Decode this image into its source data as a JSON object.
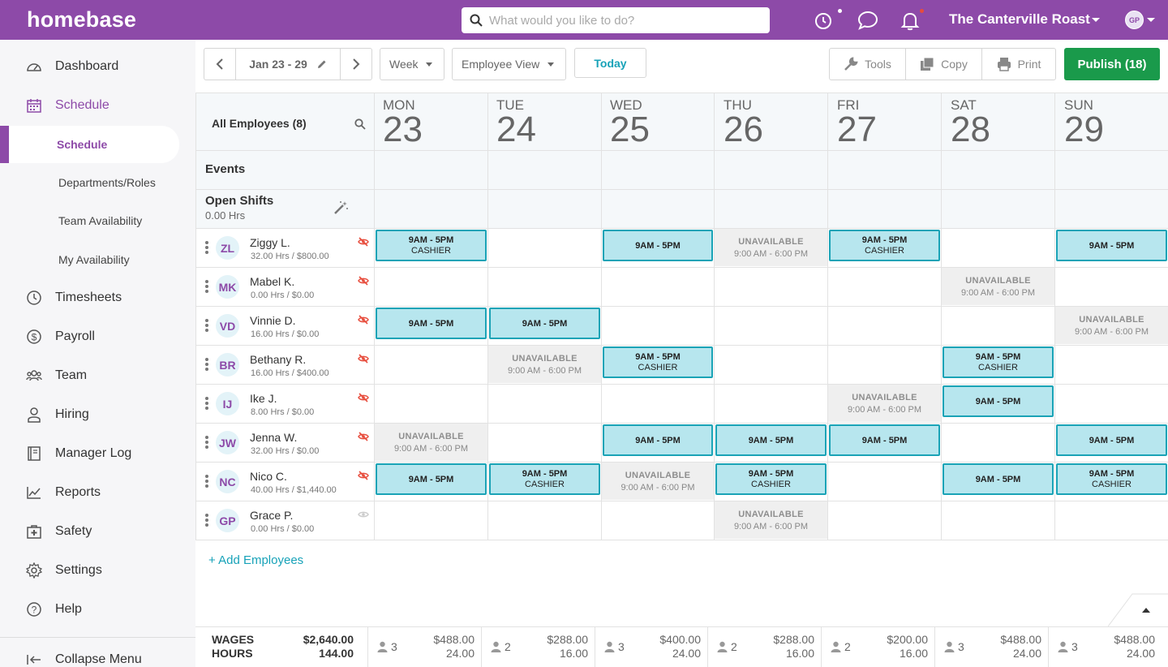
{
  "app": {
    "logo": "homebase",
    "search_placeholder": "What would you like to do?",
    "company": "The Canterville Roast",
    "user_initials": "GP"
  },
  "sidebar": {
    "items": [
      {
        "label": "Dashboard",
        "icon": "dashboard-icon"
      },
      {
        "label": "Schedule",
        "icon": "calendar-icon"
      },
      {
        "label": "Timesheets",
        "icon": "clock-icon"
      },
      {
        "label": "Payroll",
        "icon": "dollar-icon"
      },
      {
        "label": "Team",
        "icon": "team-icon"
      },
      {
        "label": "Hiring",
        "icon": "person-icon"
      },
      {
        "label": "Manager Log",
        "icon": "logbook-icon"
      },
      {
        "label": "Reports",
        "icon": "chart-icon"
      },
      {
        "label": "Safety",
        "icon": "first-aid-icon"
      },
      {
        "label": "Settings",
        "icon": "gear-icon"
      },
      {
        "label": "Help",
        "icon": "help-icon"
      }
    ],
    "sub_items": [
      "Schedule",
      "Departments/Roles",
      "Team Availability",
      "My Availability"
    ],
    "collapse": "Collapse Menu"
  },
  "toolbar": {
    "date_range": "Jan 23 - 29",
    "period": "Week",
    "view": "Employee View",
    "today": "Today",
    "tools": "Tools",
    "copy": "Copy",
    "print": "Print",
    "publish": "Publish (18)"
  },
  "grid": {
    "all_employees": "All Employees (8)",
    "events": "Events",
    "open_shifts": "Open Shifts",
    "open_hours": "0.00 Hrs",
    "add_employees": "+ Add Employees",
    "days": [
      {
        "name": "MON",
        "num": "23"
      },
      {
        "name": "TUE",
        "num": "24"
      },
      {
        "name": "WED",
        "num": "25"
      },
      {
        "name": "THU",
        "num": "26"
      },
      {
        "name": "FRI",
        "num": "27"
      },
      {
        "name": "SAT",
        "num": "28"
      },
      {
        "name": "SUN",
        "num": "29"
      }
    ],
    "shift_label": "9AM - 5PM",
    "role_label": "CASHIER",
    "unavailable_label": "UNAVAILABLE",
    "unavailable_hours": "9:00 AM - 6:00 PM",
    "employees": [
      {
        "initials": "ZL",
        "name": "Ziggy L.",
        "stats": "32.00 Hrs / $800.00",
        "cells": [
          "shift-role",
          "",
          "shift",
          "unavail",
          "shift-role",
          "",
          "shift"
        ]
      },
      {
        "initials": "MK",
        "name": "Mabel K.",
        "stats": "0.00 Hrs / $0.00",
        "cells": [
          "",
          "",
          "",
          "",
          "",
          "unavail",
          ""
        ]
      },
      {
        "initials": "VD",
        "name": "Vinnie D.",
        "stats": "16.00 Hrs / $0.00",
        "cells": [
          "shift",
          "shift",
          "",
          "",
          "",
          "",
          "unavail"
        ]
      },
      {
        "initials": "BR",
        "name": "Bethany R.",
        "stats": "16.00 Hrs / $400.00",
        "cells": [
          "",
          "unavail",
          "shift-role",
          "",
          "",
          "shift-role",
          ""
        ]
      },
      {
        "initials": "IJ",
        "name": "Ike J.",
        "stats": "8.00 Hrs / $0.00",
        "cells": [
          "",
          "",
          "",
          "",
          "unavail",
          "shift",
          ""
        ]
      },
      {
        "initials": "JW",
        "name": "Jenna W.",
        "stats": "32.00 Hrs / $0.00",
        "cells": [
          "unavail",
          "",
          "shift",
          "shift",
          "shift",
          "",
          "shift"
        ]
      },
      {
        "initials": "NC",
        "name": "Nico C.",
        "stats": "40.00 Hrs / $1,440.00",
        "cells": [
          "shift",
          "shift-role",
          "unavail",
          "shift-role",
          "",
          "shift",
          "shift-role"
        ]
      },
      {
        "initials": "GP",
        "name": "Grace P.",
        "stats": "0.00 Hrs / $0.00",
        "cells": [
          "",
          "",
          "",
          "unavail",
          "",
          "",
          ""
        ]
      }
    ]
  },
  "footer": {
    "wages_label": "WAGES",
    "hours_label": "HOURS",
    "total_wages": "$2,640.00",
    "total_hours": "144.00",
    "days": [
      {
        "count": "3",
        "wages": "$488.00",
        "hours": "24.00"
      },
      {
        "count": "2",
        "wages": "$288.00",
        "hours": "16.00"
      },
      {
        "count": "3",
        "wages": "$400.00",
        "hours": "24.00"
      },
      {
        "count": "2",
        "wages": "$288.00",
        "hours": "16.00"
      },
      {
        "count": "2",
        "wages": "$200.00",
        "hours": "16.00"
      },
      {
        "count": "3",
        "wages": "$488.00",
        "hours": "24.00"
      },
      {
        "count": "3",
        "wages": "$488.00",
        "hours": "24.00"
      }
    ]
  },
  "colors": {
    "brand": "#8d4aa8",
    "publish": "#1a9a4b",
    "shift_fill": "#b7e6ee",
    "shift_border": "#1aa3b6",
    "link": "#17a2b8"
  }
}
